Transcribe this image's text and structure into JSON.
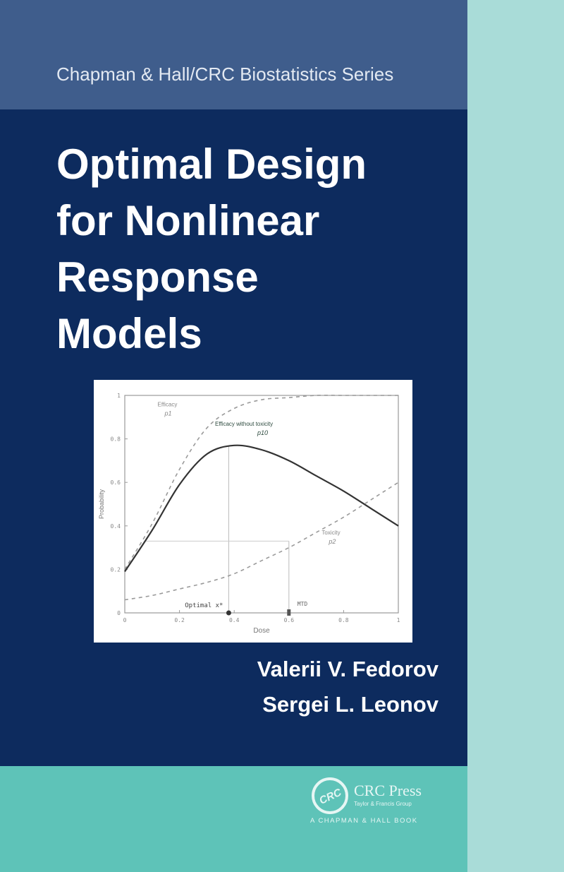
{
  "series_name": "Chapman & Hall/CRC Biostatistics Series",
  "title_lines": [
    "Optimal Design",
    "for Nonlinear",
    "Response",
    "Models"
  ],
  "authors": [
    "Valerii V. Fedorov",
    "Sergei L. Leonov"
  ],
  "publisher": {
    "name": "CRC Press",
    "tagline": "Taylor & Francis Group",
    "imprint": "A CHAPMAN & HALL BOOK",
    "logo_text": "CRC"
  },
  "colors": {
    "top_band": "#3f5d8c",
    "main": "#0d2b5e",
    "bottom": "#5ec3b8",
    "right_strip": "#a9dcd8"
  },
  "chart_data": {
    "type": "line",
    "xlabel": "Dose",
    "ylabel": "Probability",
    "xlim": [
      0,
      1
    ],
    "ylim": [
      0,
      1
    ],
    "xticks": [
      "0",
      "0.2",
      "0.4",
      "0.6",
      "0.8",
      "1"
    ],
    "yticks": [
      "0",
      "0.2",
      "0.4",
      "0.6",
      "0.8",
      "1"
    ],
    "x": [
      0,
      0.1,
      0.2,
      0.3,
      0.4,
      0.5,
      0.6,
      0.7,
      0.8,
      0.9,
      1.0
    ],
    "series": [
      {
        "name": "Efficacy p1",
        "label": "Efficacy",
        "sub": "p1",
        "style": "dashed",
        "values": [
          0.2,
          0.41,
          0.66,
          0.85,
          0.94,
          0.98,
          0.99,
          1.0,
          1.0,
          1.0,
          1.0
        ]
      },
      {
        "name": "Efficacy without toxicity p10",
        "label": "Efficacy without toxicity",
        "sub": "p10",
        "style": "solid",
        "values": [
          0.19,
          0.38,
          0.59,
          0.73,
          0.77,
          0.75,
          0.7,
          0.63,
          0.56,
          0.48,
          0.4
        ]
      },
      {
        "name": "Toxicity p2",
        "label": "Toxicity",
        "sub": "p2",
        "style": "dashed",
        "values": [
          0.06,
          0.08,
          0.11,
          0.14,
          0.18,
          0.24,
          0.3,
          0.37,
          0.44,
          0.52,
          0.6
        ]
      }
    ],
    "annotations": [
      {
        "text": "Optimal x*",
        "x": 0.38
      },
      {
        "text": "MTD",
        "x": 0.6,
        "y": 0.33
      }
    ],
    "grid": false
  }
}
